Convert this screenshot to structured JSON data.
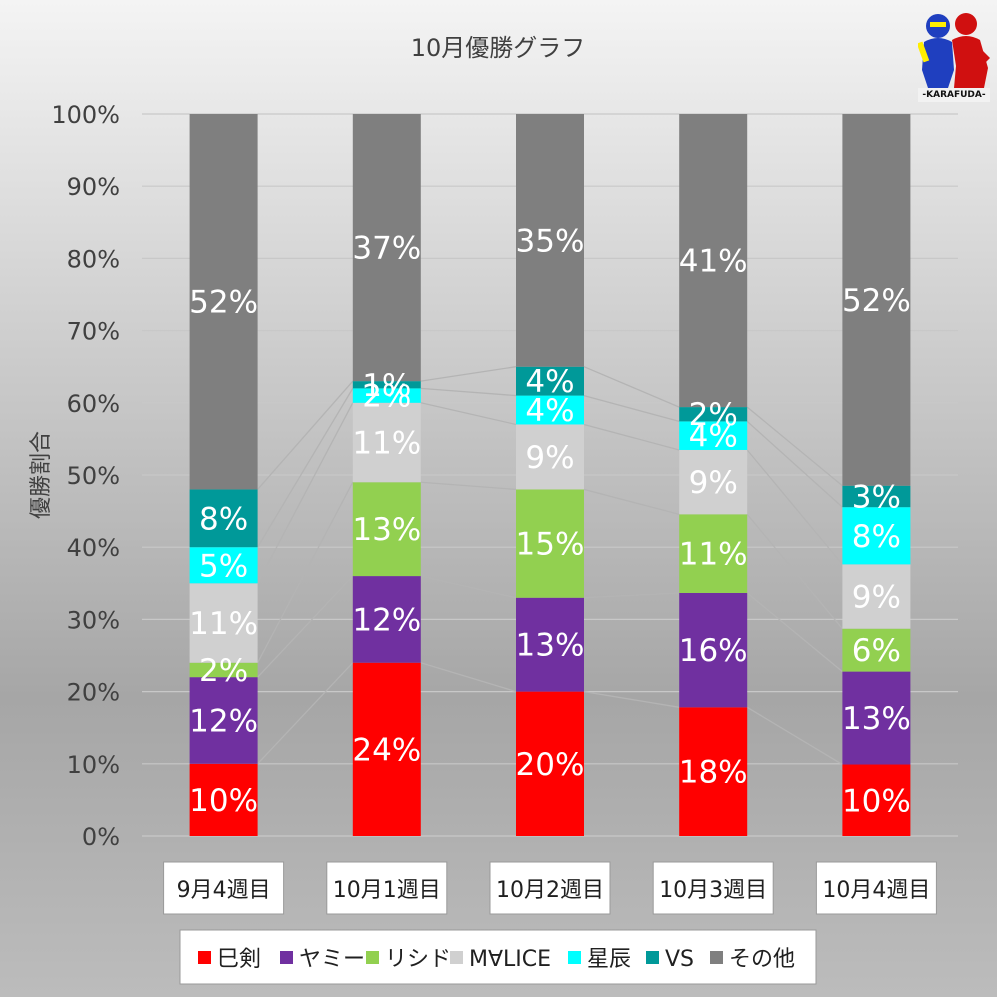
{
  "chart_data": {
    "type": "bar",
    "stacked": true,
    "percent": true,
    "title": "10月優勝グラフ",
    "ylabel": "優勝割合",
    "xlabel": "",
    "ylim": [
      0,
      100
    ],
    "yticks": [
      "0%",
      "10%",
      "20%",
      "30%",
      "40%",
      "50%",
      "60%",
      "70%",
      "80%",
      "90%",
      "100%"
    ],
    "categories": [
      "9月4週目",
      "10月1週目",
      "10月2週目",
      "10月3週目",
      "10月4週目"
    ],
    "legend_position": "bottom",
    "series": [
      {
        "name": "巳剣",
        "color": "#ff0000",
        "values": [
          10,
          24,
          20,
          18,
          10
        ],
        "labels": [
          "10%",
          "24%",
          "20%",
          "18%",
          "10%"
        ]
      },
      {
        "name": "ヤミー",
        "color": "#7030a0",
        "values": [
          12,
          12,
          13,
          16,
          13
        ],
        "labels": [
          "12%",
          "12%",
          "13%",
          "16%",
          "13%"
        ]
      },
      {
        "name": "リシド",
        "color": "#92d050",
        "values": [
          2,
          13,
          15,
          11,
          6
        ],
        "labels": [
          "2%",
          "13%",
          "15%",
          "11%",
          "6%"
        ]
      },
      {
        "name": "M∀LICE",
        "color": "#d0d0d0",
        "values": [
          11,
          11,
          9,
          9,
          9
        ],
        "labels": [
          "11%",
          "11%",
          "9%",
          "9%",
          "9%"
        ]
      },
      {
        "name": "星辰",
        "color": "#00ffff",
        "values": [
          5,
          2,
          4,
          4,
          8
        ],
        "labels": [
          "5%",
          "2%",
          "4%",
          "4%",
          "8%"
        ]
      },
      {
        "name": "VS",
        "color": "#009999",
        "values": [
          8,
          1,
          4,
          2,
          3
        ],
        "labels": [
          "8%",
          "1%",
          "4%",
          "2%",
          "3%"
        ]
      },
      {
        "name": "その他",
        "color": "#7f7f7f",
        "values": [
          52,
          37,
          35,
          41,
          52
        ],
        "labels": [
          "52%",
          "37%",
          "35%",
          "41%",
          "52%"
        ]
      }
    ]
  },
  "logo": {
    "text": "-KARAFUDA-"
  }
}
